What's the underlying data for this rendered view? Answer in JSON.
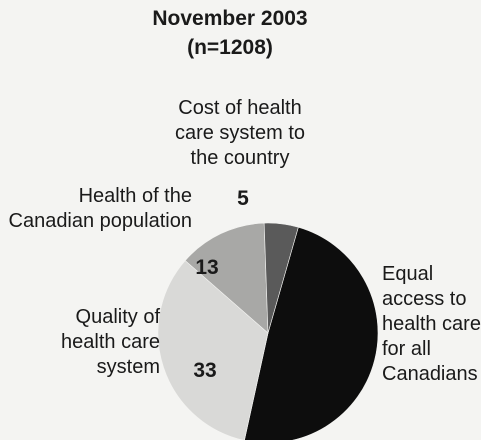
{
  "chart_data": {
    "type": "pie",
    "title": "November 2003",
    "subtitle": "(n=1208)",
    "slices": [
      {
        "label_lines": [
          "Equal",
          "access to",
          "health care",
          "for all",
          "Canadians"
        ],
        "value": 49,
        "value_label": "",
        "color": "#0d0d0d"
      },
      {
        "label_lines": [
          "Quality of",
          "health care",
          "system"
        ],
        "value": 33,
        "value_label": "33",
        "color": "#d9d9d7"
      },
      {
        "label_lines": [
          "Health of the",
          "Canadian population"
        ],
        "value": 13,
        "value_label": "13",
        "color": "#a8a8a6"
      },
      {
        "label_lines": [
          "Cost of health",
          "care system to",
          "the country"
        ],
        "value": 5,
        "value_label": "5",
        "color": "#5a5a5a"
      }
    ]
  }
}
